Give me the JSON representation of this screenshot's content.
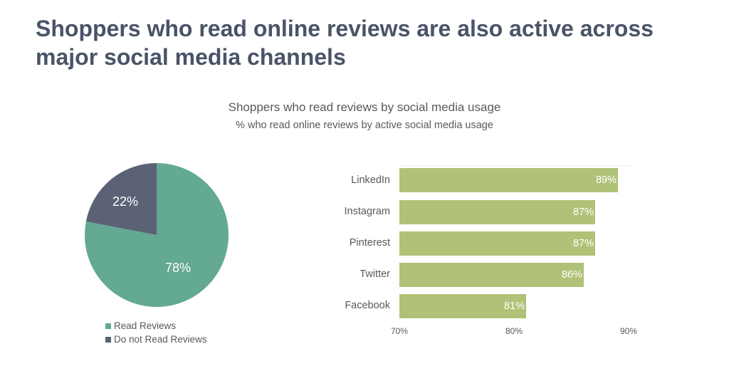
{
  "header": {
    "title": "Shoppers who read online reviews are also active across major social media channels"
  },
  "chart_header": {
    "title": "Shoppers who read reviews by social media usage",
    "subtitle": "% who read online reviews by active social media usage"
  },
  "colors": {
    "title": "#4a5468",
    "read_reviews": "#63a994",
    "do_not_read_reviews": "#5b6275",
    "bar": "#b0c277",
    "text": "#595959"
  },
  "pie": {
    "slices": [
      {
        "label": "Read Reviews",
        "value": 78,
        "display": "78%"
      },
      {
        "label": "Do not Read Reviews",
        "value": 22,
        "display": "22%"
      }
    ]
  },
  "bar_chart": {
    "bars": [
      {
        "label": "LinkedIn",
        "value": 89,
        "display": "89%"
      },
      {
        "label": "Instagram",
        "value": 87,
        "display": "87%"
      },
      {
        "label": "Pinterest",
        "value": 87,
        "display": "87%"
      },
      {
        "label": "Twitter",
        "value": 86,
        "display": "86%"
      },
      {
        "label": "Facebook",
        "value": 81,
        "display": "81%"
      }
    ],
    "ticks": [
      "70%",
      "80%",
      "90%"
    ]
  },
  "chart_data": [
    {
      "type": "pie",
      "title": "Shoppers who read reviews by social media usage",
      "categories": [
        "Read Reviews",
        "Do not Read Reviews"
      ],
      "values": [
        78,
        22
      ],
      "legend_position": "bottom"
    },
    {
      "type": "bar",
      "orientation": "horizontal",
      "title": "Shoppers who read reviews by social media usage",
      "subtitle": "% who read online reviews by active social media usage",
      "categories": [
        "LinkedIn",
        "Instagram",
        "Pinterest",
        "Twitter",
        "Facebook"
      ],
      "values": [
        89,
        87,
        87,
        86,
        81
      ],
      "xlabel": "",
      "ylabel": "",
      "xlim": [
        70,
        90
      ],
      "xticks": [
        "70%",
        "80%",
        "90%"
      ],
      "grid": false
    }
  ]
}
